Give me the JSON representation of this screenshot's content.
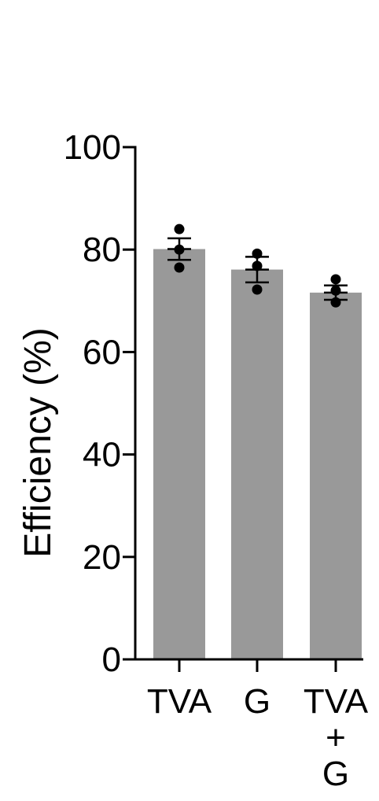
{
  "chart_data": {
    "type": "bar",
    "categories": [
      "TVA",
      "G",
      "TVA\n+\nG"
    ],
    "values": [
      80.1,
      76.1,
      71.6
    ],
    "sem": [
      2.1,
      2.5,
      1.4
    ],
    "points": [
      [
        84.0,
        80.0,
        76.5
      ],
      [
        79.2,
        76.8,
        72.2
      ],
      [
        74.2,
        72.0,
        69.7
      ]
    ],
    "xlabel": "",
    "ylabel": "Efficiency (%)",
    "ylim": [
      0,
      100
    ],
    "yticks": [
      0,
      20,
      40,
      60,
      80,
      100
    ],
    "bar_color": "#999999",
    "point_color": "#000000",
    "axis_color": "#000000",
    "grid": false,
    "legend": "none"
  }
}
